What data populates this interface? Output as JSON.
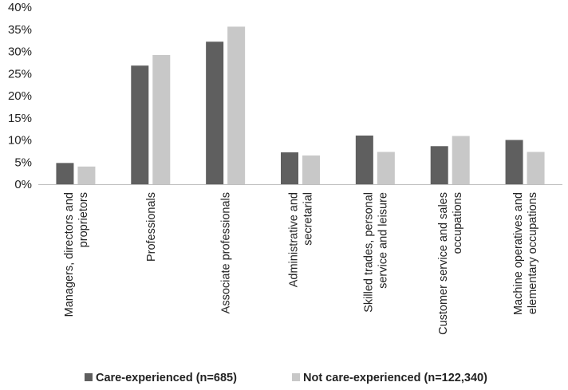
{
  "chart_data": {
    "type": "bar",
    "categories": [
      [
        "Managers, directors and",
        "proprietors"
      ],
      [
        "Professionals"
      ],
      [
        "Associate professionals"
      ],
      [
        "Administrative and",
        "secretarial"
      ],
      [
        "Skilled trades, personal",
        "service and leisure"
      ],
      [
        "Customer service and sales",
        "occupations"
      ],
      [
        "Machine operatives and",
        "elementary occupations"
      ]
    ],
    "series": [
      {
        "name": "Care-experienced (n=685)",
        "color": "#5f5f5f",
        "values": [
          4.8,
          26.8,
          32.2,
          7.2,
          11.0,
          8.6,
          10.0
        ]
      },
      {
        "name": "Not care-experienced (n=122,340)",
        "color": "#c8c8c8",
        "values": [
          4.0,
          29.2,
          35.6,
          6.5,
          7.3,
          10.9,
          7.3
        ]
      }
    ],
    "ylim": [
      0,
      40
    ],
    "yticks": [
      "0%",
      "5%",
      "10%",
      "15%",
      "20%",
      "25%",
      "30%",
      "35%",
      "40%"
    ],
    "grid": false,
    "legend": "bottom"
  }
}
